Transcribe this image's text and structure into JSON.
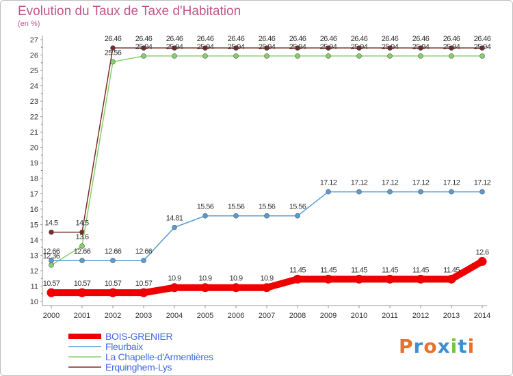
{
  "title": "Evolution du Taux de Taxe d'Habitation",
  "subtitle": "(en %)",
  "logo": {
    "text": "Proxiti",
    "colors": [
      "#e8722c",
      "#3f8fd0",
      "#e8722c",
      "#3f8fd0",
      "#7cc242",
      "#3f8fd0",
      "#e8722c"
    ]
  },
  "chart_data": {
    "type": "line",
    "title": "Evolution du Taux de Taxe d'Habitation",
    "ylabel": "(en %)",
    "xlabel": "",
    "x": [
      "2000",
      "2001",
      "2002",
      "2003",
      "2004",
      "2005",
      "2006",
      "2007",
      "2008",
      "2009",
      "2010",
      "2011",
      "2012",
      "2013",
      "2014"
    ],
    "ylim": [
      10,
      27
    ],
    "yticks": [
      "10",
      "11",
      "12",
      "13",
      "14",
      "15",
      "16",
      "17",
      "18",
      "19",
      "20",
      "21",
      "22",
      "23",
      "24",
      "25",
      "26",
      "27"
    ],
    "grid": false,
    "legend_position": "bottom-left",
    "series": [
      {
        "name": "BOIS-GRENIER",
        "color": "#ee0000",
        "values": [
          10.57,
          10.57,
          10.57,
          10.57,
          10.9,
          10.9,
          10.9,
          10.9,
          11.45,
          11.45,
          11.45,
          11.45,
          11.45,
          11.45,
          12.6
        ],
        "labels": [
          "10.57",
          "10.57",
          "10.57",
          "10.57",
          "10.9",
          "10.9",
          "10.9",
          "10.9",
          "11.45",
          "11.45",
          "11.45",
          "11.45",
          "11.45",
          "11.45",
          "12.6"
        ]
      },
      {
        "name": "Fleurbaix",
        "color": "#5a9bd5",
        "values": [
          12.66,
          12.66,
          12.66,
          12.66,
          14.81,
          15.56,
          15.56,
          15.56,
          15.56,
          17.12,
          17.12,
          17.12,
          17.12,
          17.12,
          17.12
        ],
        "labels": [
          "12.66",
          "12.66",
          "12.66",
          "12.66",
          "14.81",
          "15.56",
          "15.56",
          "15.56",
          "15.56",
          "17.12",
          "17.12",
          "17.12",
          "17.12",
          "17.12",
          "17.12"
        ]
      },
      {
        "name": "La Chapelle-d'Armentières",
        "color": "#86d06a",
        "values": [
          12.36,
          13.6,
          25.56,
          25.94,
          25.94,
          25.94,
          25.94,
          25.94,
          25.94,
          25.94,
          25.94,
          25.94,
          25.94,
          25.94,
          25.94
        ],
        "labels": [
          "12.36",
          "13.6",
          "25.56",
          "25.94",
          "25.94",
          "25.94",
          "25.94",
          "25.94",
          "25.94",
          "25.94",
          "25.94",
          "25.94",
          "25.94",
          "25.94",
          "25.94"
        ]
      },
      {
        "name": "Erquinghem-Lys",
        "color": "#7a2a2a",
        "values": [
          14.5,
          14.5,
          26.46,
          26.46,
          26.46,
          26.46,
          26.46,
          26.46,
          26.46,
          26.46,
          26.46,
          26.46,
          26.46,
          26.46,
          26.46
        ],
        "labels": [
          "14.5",
          "14.5",
          "26.46",
          "26.46",
          "26.46",
          "26.46",
          "26.46",
          "26.46",
          "26.46",
          "26.46",
          "26.46",
          "26.46",
          "26.46",
          "26.46",
          "26.46"
        ]
      }
    ]
  }
}
